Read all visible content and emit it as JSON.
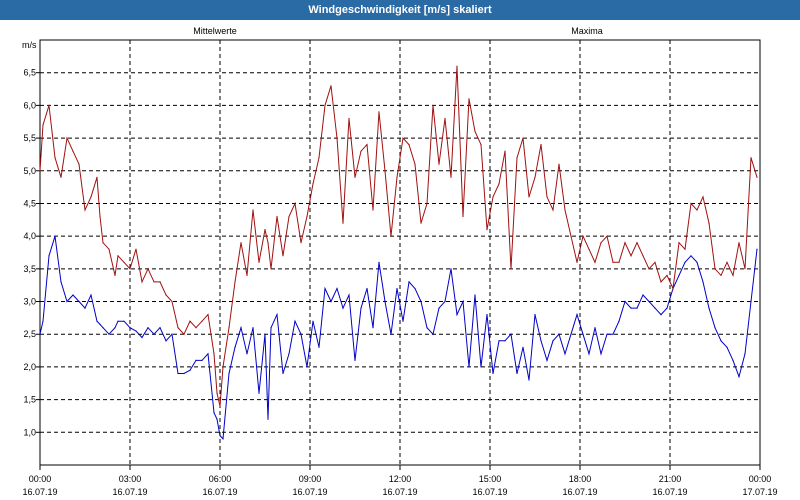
{
  "window": {
    "title": "Windgeschwindigkeit [m/s] skaliert"
  },
  "chart_data": {
    "type": "line",
    "title": "Windgeschwindigkeit [m/s] skaliert",
    "ylabel": "m/s",
    "xlabel": "",
    "ylim": [
      0.5,
      7.0
    ],
    "xlim_hours": [
      0,
      24
    ],
    "grid": true,
    "y_ticks": [
      "1,0",
      "1,5",
      "2,0",
      "2,5",
      "3,0",
      "3,5",
      "4,0",
      "4,5",
      "5,0",
      "5,5",
      "6,0",
      "6,5"
    ],
    "x_ticks": [
      {
        "time": "00:00",
        "date": "16.07.19"
      },
      {
        "time": "03:00",
        "date": "16.07.19"
      },
      {
        "time": "06:00",
        "date": "16.07.19"
      },
      {
        "time": "09:00",
        "date": "16.07.19"
      },
      {
        "time": "12:00",
        "date": "16.07.19"
      },
      {
        "time": "15:00",
        "date": "16.07.19"
      },
      {
        "time": "18:00",
        "date": "16.07.19"
      },
      {
        "time": "21:00",
        "date": "16.07.19"
      },
      {
        "time": "00:00",
        "date": "17.07.19"
      }
    ],
    "series": [
      {
        "name": "Mittelwerte",
        "color": "#0000c8",
        "x": [
          0,
          0.1,
          0.3,
          0.5,
          0.7,
          0.9,
          1.1,
          1.3,
          1.5,
          1.7,
          1.9,
          2.0,
          2.1,
          2.3,
          2.5,
          2.6,
          2.8,
          3.0,
          3.2,
          3.4,
          3.6,
          3.8,
          4.0,
          4.2,
          4.4,
          4.6,
          4.8,
          5.0,
          5.2,
          5.4,
          5.6,
          5.8,
          5.9,
          6.0,
          6.1,
          6.3,
          6.5,
          6.7,
          6.9,
          7.1,
          7.3,
          7.5,
          7.6,
          7.7,
          7.9,
          8.1,
          8.3,
          8.5,
          8.7,
          8.9,
          9.1,
          9.3,
          9.5,
          9.7,
          9.9,
          10.1,
          10.3,
          10.5,
          10.7,
          10.9,
          11.1,
          11.3,
          11.5,
          11.7,
          11.9,
          12.1,
          12.3,
          12.5,
          12.7,
          12.9,
          13.1,
          13.3,
          13.5,
          13.7,
          13.9,
          14.1,
          14.3,
          14.5,
          14.7,
          14.9,
          15.1,
          15.3,
          15.5,
          15.7,
          15.9,
          16.1,
          16.3,
          16.5,
          16.7,
          16.9,
          17.1,
          17.3,
          17.5,
          17.7,
          17.9,
          18.1,
          18.3,
          18.5,
          18.7,
          18.9,
          19.1,
          19.3,
          19.5,
          19.7,
          19.9,
          20.1,
          20.3,
          20.5,
          20.7,
          20.9,
          21.1,
          21.3,
          21.5,
          21.7,
          21.9,
          22.1,
          22.3,
          22.5,
          22.7,
          22.9,
          23.1,
          23.3,
          23.5,
          23.7,
          23.9
        ],
        "values": [
          2.5,
          2.7,
          3.7,
          4.0,
          3.3,
          3.0,
          3.1,
          3.0,
          2.9,
          3.1,
          2.7,
          2.65,
          2.6,
          2.5,
          2.6,
          2.7,
          2.7,
          2.6,
          2.55,
          2.45,
          2.6,
          2.5,
          2.6,
          2.4,
          2.5,
          1.9,
          1.9,
          1.95,
          2.1,
          2.1,
          2.2,
          1.3,
          1.2,
          0.95,
          0.9,
          1.9,
          2.3,
          2.6,
          2.2,
          2.6,
          1.6,
          2.5,
          1.2,
          2.6,
          2.8,
          1.9,
          2.2,
          2.7,
          2.5,
          2.0,
          2.7,
          2.3,
          3.2,
          3.0,
          3.2,
          2.9,
          3.1,
          2.1,
          2.9,
          3.2,
          2.6,
          3.6,
          3.0,
          2.5,
          3.2,
          2.7,
          3.3,
          3.2,
          3.0,
          2.6,
          2.5,
          2.9,
          3.0,
          3.5,
          2.8,
          3.0,
          2.0,
          3.1,
          2.0,
          2.8,
          1.9,
          2.4,
          2.4,
          2.5,
          1.9,
          2.3,
          1.8,
          2.8,
          2.4,
          2.1,
          2.4,
          2.5,
          2.2,
          2.5,
          2.8,
          2.5,
          2.2,
          2.6,
          2.2,
          2.5,
          2.5,
          2.7,
          3.0,
          2.9,
          2.9,
          3.1,
          3.0,
          2.9,
          2.8,
          2.9,
          3.2,
          3.4,
          3.6,
          3.7,
          3.6,
          3.3,
          2.9,
          2.6,
          2.4,
          2.3,
          2.1,
          1.85,
          2.2,
          3.0,
          3.8
        ]
      },
      {
        "name": "Maxima",
        "color": "#a01010",
        "x": [
          0,
          0.1,
          0.3,
          0.5,
          0.7,
          0.9,
          1.1,
          1.3,
          1.5,
          1.7,
          1.9,
          2.0,
          2.1,
          2.3,
          2.5,
          2.6,
          2.8,
          3.0,
          3.2,
          3.4,
          3.6,
          3.8,
          4.0,
          4.2,
          4.4,
          4.6,
          4.8,
          5.0,
          5.2,
          5.4,
          5.6,
          5.8,
          5.9,
          6.0,
          6.1,
          6.3,
          6.5,
          6.7,
          6.9,
          7.1,
          7.3,
          7.5,
          7.6,
          7.7,
          7.9,
          8.1,
          8.3,
          8.5,
          8.7,
          8.9,
          9.1,
          9.3,
          9.5,
          9.7,
          9.9,
          10.1,
          10.3,
          10.5,
          10.7,
          10.9,
          11.1,
          11.3,
          11.5,
          11.7,
          11.9,
          12.1,
          12.3,
          12.5,
          12.7,
          12.9,
          13.1,
          13.3,
          13.5,
          13.7,
          13.9,
          14.1,
          14.3,
          14.5,
          14.7,
          14.9,
          15.1,
          15.3,
          15.5,
          15.7,
          15.9,
          16.1,
          16.3,
          16.5,
          16.7,
          16.9,
          17.1,
          17.3,
          17.5,
          17.7,
          17.9,
          18.1,
          18.3,
          18.5,
          18.7,
          18.9,
          19.1,
          19.3,
          19.5,
          19.7,
          19.9,
          20.1,
          20.3,
          20.5,
          20.7,
          20.9,
          21.1,
          21.3,
          21.5,
          21.7,
          21.9,
          22.1,
          22.3,
          22.5,
          22.7,
          22.9,
          23.1,
          23.3,
          23.5,
          23.7,
          23.9
        ],
        "values": [
          5.0,
          5.7,
          6.0,
          5.2,
          4.9,
          5.5,
          5.3,
          5.1,
          4.4,
          4.6,
          4.9,
          4.3,
          3.9,
          3.8,
          3.4,
          3.7,
          3.6,
          3.5,
          3.8,
          3.3,
          3.5,
          3.3,
          3.3,
          3.1,
          3.0,
          2.6,
          2.5,
          2.7,
          2.6,
          2.7,
          2.8,
          2.2,
          1.6,
          1.4,
          2.0,
          2.6,
          3.3,
          3.9,
          3.4,
          4.4,
          3.6,
          4.1,
          3.9,
          3.5,
          4.3,
          3.7,
          4.3,
          4.5,
          3.9,
          4.3,
          4.8,
          5.2,
          6.0,
          6.3,
          5.5,
          4.2,
          5.8,
          4.9,
          5.3,
          5.4,
          4.4,
          5.9,
          5.0,
          4.0,
          4.9,
          5.5,
          5.4,
          5.1,
          4.2,
          4.5,
          6.0,
          5.1,
          5.8,
          4.9,
          6.6,
          4.3,
          6.1,
          5.6,
          5.4,
          4.1,
          4.6,
          4.8,
          5.3,
          3.5,
          5.2,
          5.5,
          4.6,
          4.9,
          5.4,
          4.6,
          4.4,
          5.1,
          4.4,
          4.0,
          3.6,
          4.0,
          3.8,
          3.6,
          3.9,
          4.0,
          3.6,
          3.6,
          3.9,
          3.7,
          3.9,
          3.7,
          3.5,
          3.6,
          3.3,
          3.4,
          3.2,
          3.9,
          3.8,
          4.5,
          4.4,
          4.6,
          4.2,
          3.5,
          3.4,
          3.6,
          3.4,
          3.9,
          3.5,
          5.2,
          4.9
        ]
      }
    ]
  }
}
